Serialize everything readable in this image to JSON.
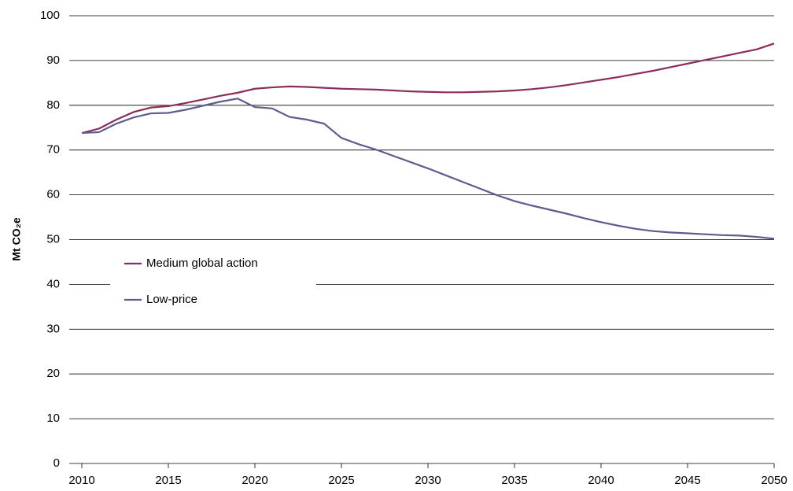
{
  "chart_data": {
    "type": "line",
    "y_label": "Mt CO₂e",
    "x": [
      2010,
      2011,
      2012,
      2013,
      2014,
      2015,
      2016,
      2017,
      2018,
      2019,
      2020,
      2021,
      2022,
      2023,
      2024,
      2025,
      2026,
      2027,
      2028,
      2029,
      2030,
      2031,
      2032,
      2033,
      2034,
      2035,
      2036,
      2037,
      2038,
      2039,
      2040,
      2041,
      2042,
      2043,
      2044,
      2045,
      2046,
      2047,
      2048,
      2049,
      2050
    ],
    "series": [
      {
        "name": "Medium global action",
        "color": "#8c2d5c",
        "values": [
          73.8,
          74.8,
          76.8,
          78.5,
          79.5,
          79.8,
          80.5,
          81.3,
          82.1,
          82.8,
          83.7,
          84.0,
          84.2,
          84.1,
          83.9,
          83.7,
          83.6,
          83.5,
          83.3,
          83.1,
          83.0,
          82.9,
          82.9,
          83.0,
          83.1,
          83.3,
          83.6,
          84.0,
          84.5,
          85.1,
          85.7,
          86.3,
          87.0,
          87.7,
          88.5,
          89.3,
          90.1,
          90.9,
          91.7,
          92.5,
          93.8
        ]
      },
      {
        "name": "Low-price",
        "color": "#5c5c8e",
        "values": [
          73.8,
          74.0,
          75.9,
          77.3,
          78.2,
          78.3,
          79.0,
          79.9,
          80.8,
          81.5,
          79.6,
          79.3,
          77.4,
          76.8,
          75.9,
          72.7,
          71.3,
          70.1,
          68.7,
          67.3,
          65.9,
          64.4,
          62.9,
          61.4,
          59.9,
          58.6,
          57.6,
          56.7,
          55.8,
          54.8,
          53.9,
          53.1,
          52.4,
          51.9,
          51.6,
          51.4,
          51.2,
          51.0,
          50.9,
          50.6,
          50.2
        ]
      }
    ],
    "xlim": [
      2010,
      2050
    ],
    "xticks": [
      2010,
      2015,
      2020,
      2025,
      2030,
      2035,
      2040,
      2045,
      2050
    ],
    "ylim": [
      0,
      100
    ],
    "yticks": [
      0,
      10,
      20,
      30,
      40,
      50,
      60,
      70,
      80,
      90,
      100
    ],
    "grid": true,
    "legend": "center-left"
  }
}
